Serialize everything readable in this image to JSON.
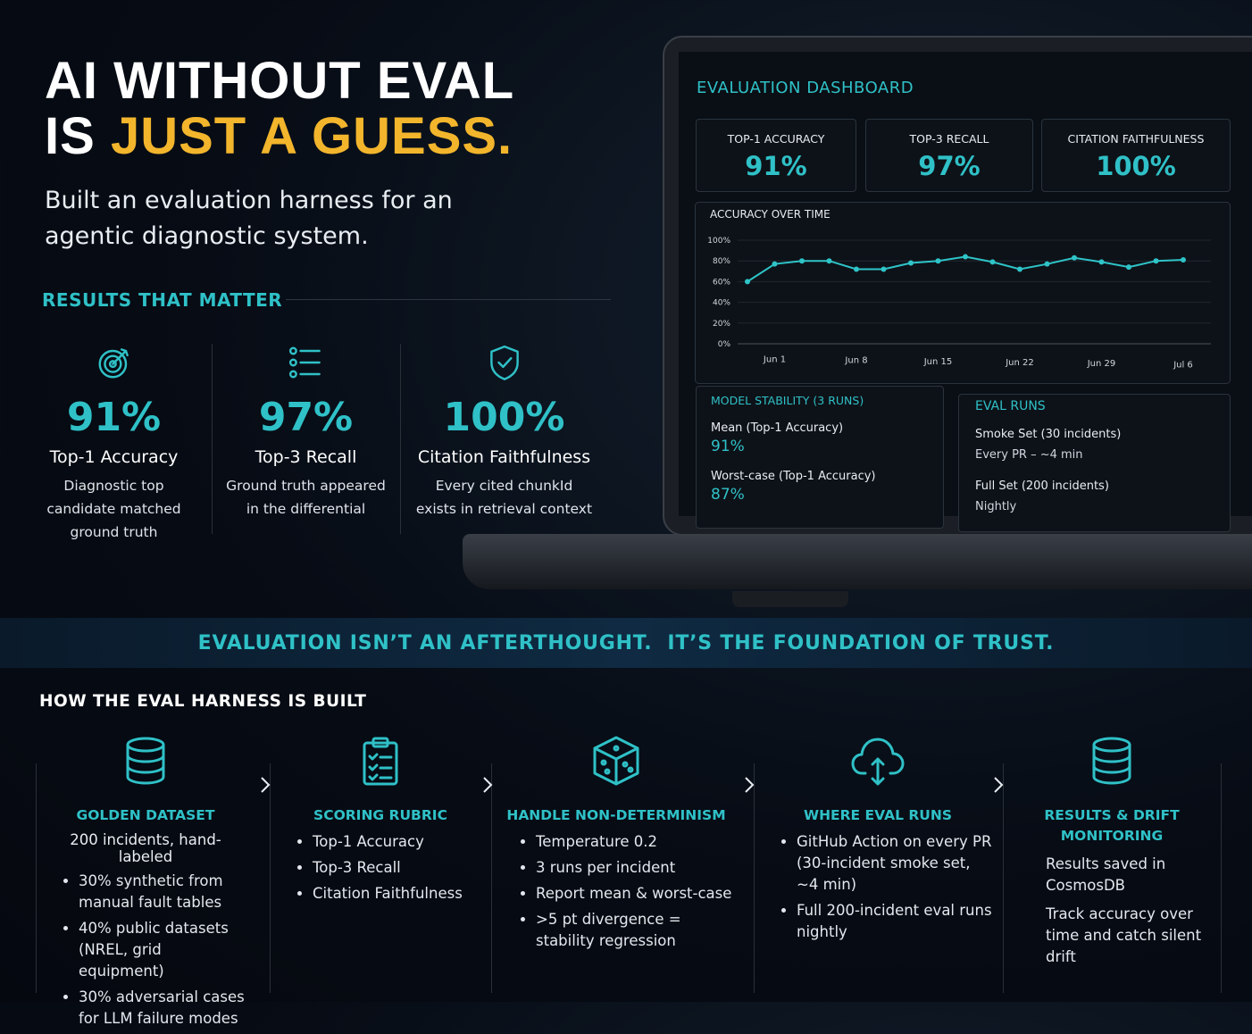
{
  "header": {
    "title_line1": "AI WITHOUT EVAL",
    "title_line2": "IS",
    "title_highlight": "JUST A GUESS.",
    "subtitle": "Built an evaluation harness for an agentic diagnostic system."
  },
  "results": {
    "heading": "RESULTS THAT MATTER",
    "items": [
      {
        "value": "91%",
        "label": "Top-1 Accuracy",
        "description": "Diagnostic top candidate matched ground truth"
      },
      {
        "value": "97%",
        "label": "Top-3 Recall",
        "description": "Ground truth appeared in the differential"
      },
      {
        "value": "100%",
        "label": "Citation Faithfulness",
        "description": "Every cited chunkId exists in retrieval context"
      }
    ]
  },
  "dashboard": {
    "title": "EVALUATION DASHBOARD",
    "kpis": [
      {
        "label": "TOP-1 ACCURACY",
        "value": "91%"
      },
      {
        "label": "TOP-3 RECALL",
        "value": "97%"
      },
      {
        "label": "CITATION FAITHFULNESS",
        "value": "100%"
      }
    ],
    "stability": {
      "title": "MODEL STABILITY (3 RUNS)",
      "items": [
        {
          "label": "Mean (Top-1 Accuracy)",
          "value": "91%"
        },
        {
          "label": "Worst-case (Top-1 Accuracy)",
          "value": "87%"
        }
      ]
    },
    "runs": {
      "title": "EVAL RUNS",
      "items": [
        {
          "label": "Smoke Set (30 incidents)",
          "detail": "Every PR – ~4 min"
        },
        {
          "label": "Full Set (200 incidents)",
          "detail": "Nightly"
        }
      ]
    }
  },
  "chart_data": {
    "type": "line",
    "title": "ACCURACY OVER TIME",
    "categories": [
      null,
      "Jun 1",
      null,
      null,
      "Jun 8",
      null,
      null,
      "Jun 15",
      null,
      null,
      "Jun 22",
      null,
      null,
      "Jun 29",
      null,
      null,
      "Jul 6"
    ],
    "series": [
      {
        "name": "Top-1 Accuracy",
        "color": "#2ec4c8",
        "values": [
          60,
          77,
          80,
          80,
          72,
          72,
          78,
          80,
          84,
          79,
          72,
          77,
          83,
          79,
          74,
          80,
          81
        ]
      }
    ],
    "ylim": [
      0,
      100
    ],
    "yticks": [
      {
        "value": 0,
        "label": "0%"
      },
      {
        "value": 20,
        "label": "20%"
      },
      {
        "value": 40,
        "label": "40%"
      },
      {
        "value": 60,
        "label": "60%"
      },
      {
        "value": 80,
        "label": "80%"
      },
      {
        "value": 100,
        "label": "100%"
      }
    ],
    "grid": true
  },
  "banner": "EVALUATION ISN’T AN AFTERTHOUGHT.  IT’S THE FOUNDATION OF TRUST.",
  "harness": {
    "heading": "HOW THE EVAL HARNESS IS BUILT",
    "steps": [
      {
        "title": "GOLDEN DATASET",
        "lead": "200 incidents, hand-labeled",
        "bullets": [
          "30% synthetic from manual fault tables",
          "40% public datasets (NREL, grid equipment)",
          "30% adversarial cases for LLM failure modes"
        ]
      },
      {
        "title": "SCORING RUBRIC",
        "bullets": [
          "Top-1 Accuracy",
          "Top-3 Recall",
          "Citation Faithfulness"
        ]
      },
      {
        "title": "HANDLE NON-DETERMINISM",
        "bullets": [
          "Temperature 0.2",
          "3 runs per incident",
          "Report mean & worst-case",
          ">5 pt divergence = stability regression"
        ]
      },
      {
        "title": "WHERE EVAL RUNS",
        "bullets": [
          "GitHub Action on every PR (30-incident smoke set, ~4 min)",
          "Full 200-incident eval runs nightly"
        ]
      },
      {
        "title": "RESULTS & DRIFT MONITORING",
        "paragraphs": [
          "Results saved in CosmosDB",
          "Track accuracy over time and catch silent drift"
        ]
      }
    ]
  }
}
